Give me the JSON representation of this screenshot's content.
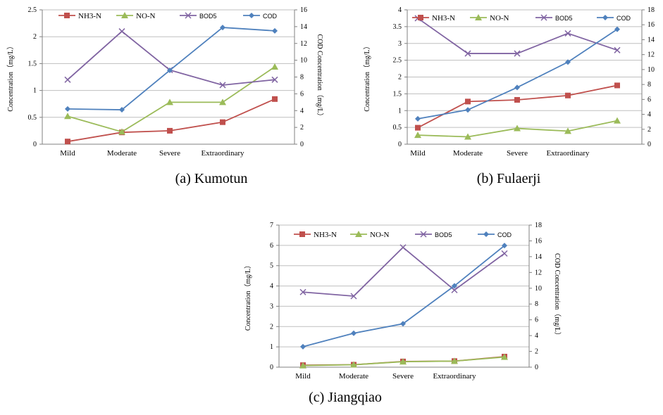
{
  "colors": {
    "NH3-N": "#C0504D",
    "NO-N": "#9BBB59",
    "BOD5": "#8064A2",
    "COD": "#4F81BD",
    "grid": "#BFBFBF",
    "axis": "#808080"
  },
  "markers": {
    "NH3-N": "square",
    "NO-N": "triangle",
    "BOD5": "x",
    "COD": "diamond"
  },
  "chart_data": [
    {
      "type": "line",
      "caption": "(a) Kumotun",
      "categories": [
        "Mild",
        "Moderate",
        "Severe",
        "Extraordinary",
        ""
      ],
      "ylabel_left": "Concentration（mg/L）",
      "ylabel_right": "COD Concentration（mg/L）",
      "ylim": [
        0,
        2.5
      ],
      "yticks": [
        "0",
        "0.5",
        "1",
        "1.5",
        "2",
        "2.5"
      ],
      "y2lim": [
        0,
        16
      ],
      "y2ticks": [
        "0",
        "2",
        "4",
        "6",
        "8",
        "10",
        "12",
        "14",
        "16"
      ],
      "grid": true,
      "legend_position": "top",
      "series": [
        {
          "name": "NH3-N",
          "axis": "left",
          "values": [
            0.05,
            0.22,
            0.25,
            0.41,
            0.84
          ]
        },
        {
          "name": "NO-N",
          "axis": "left",
          "values": [
            0.52,
            0.23,
            0.78,
            0.78,
            1.44
          ]
        },
        {
          "name": "BOD5",
          "axis": "left",
          "values": [
            1.2,
            2.1,
            1.38,
            1.1,
            1.2
          ]
        },
        {
          "name": "COD",
          "axis": "right",
          "values": [
            4.2,
            4.1,
            8.8,
            13.9,
            13.5
          ]
        }
      ]
    },
    {
      "type": "line",
      "caption": "(b) Fulaerji",
      "categories": [
        "Mild",
        "Moderate",
        "Severe",
        "Extraordinary",
        ""
      ],
      "ylabel_left": "Concentration（mg/L）",
      "ylabel_right": "COD Concentration（mg/L）",
      "ylim": [
        0,
        4
      ],
      "yticks": [
        "0",
        "0.5",
        "1",
        "1.5",
        "2",
        "2.5",
        "3",
        "3.5",
        "4"
      ],
      "y2lim": [
        0,
        18
      ],
      "y2ticks": [
        "0",
        "2",
        "4",
        "6",
        "8",
        "10",
        "12",
        "14",
        "16",
        "18"
      ],
      "grid": true,
      "legend_position": "top",
      "series": [
        {
          "name": "NH3-N",
          "axis": "left",
          "values": [
            0.49,
            1.27,
            1.32,
            1.45,
            1.75
          ]
        },
        {
          "name": "NO-N",
          "axis": "left",
          "values": [
            0.27,
            0.22,
            0.47,
            0.39,
            0.7
          ]
        },
        {
          "name": "BOD5",
          "axis": "left",
          "values": [
            3.75,
            2.7,
            2.7,
            3.3,
            2.8
          ]
        },
        {
          "name": "COD",
          "axis": "right",
          "values": [
            3.4,
            4.6,
            7.6,
            11.0,
            15.4
          ]
        }
      ]
    },
    {
      "type": "line",
      "caption": "(c) Jiangqiao",
      "categories": [
        "Mild",
        "Moderate",
        "Severe",
        "Extraordinary",
        ""
      ],
      "ylabel_left": "Concentration（mg/L）",
      "ylabel_right": "COD Concentration（mg/L）",
      "ylim": [
        0,
        7
      ],
      "yticks": [
        "0",
        "1",
        "2",
        "3",
        "4",
        "5",
        "6",
        "7"
      ],
      "y2lim": [
        0,
        18
      ],
      "y2ticks": [
        "0",
        "2",
        "4",
        "6",
        "8",
        "10",
        "12",
        "14",
        "16",
        "18"
      ],
      "grid": true,
      "legend_position": "top",
      "series": [
        {
          "name": "NH3-N",
          "axis": "left",
          "values": [
            0.1,
            0.12,
            0.28,
            0.3,
            0.52
          ]
        },
        {
          "name": "NO-N",
          "axis": "left",
          "values": [
            0.08,
            0.12,
            0.27,
            0.3,
            0.5
          ]
        },
        {
          "name": "BOD5",
          "axis": "left",
          "values": [
            3.7,
            3.5,
            5.9,
            3.8,
            5.6
          ]
        },
        {
          "name": "COD",
          "axis": "right",
          "values": [
            2.6,
            4.3,
            5.5,
            10.3,
            15.4
          ]
        }
      ]
    }
  ]
}
